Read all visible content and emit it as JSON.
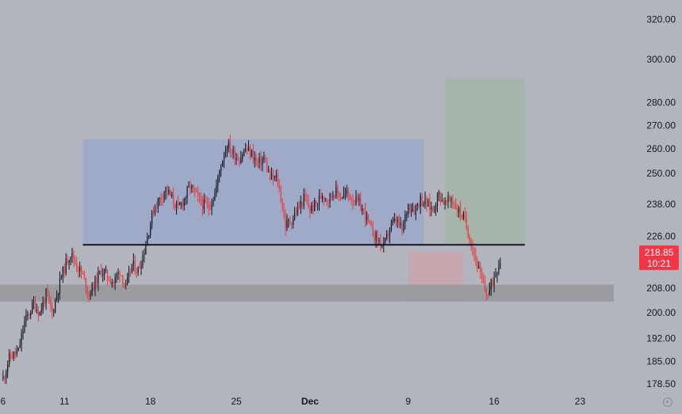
{
  "chart_data": {
    "type": "candlestick",
    "title": "",
    "xlabel": "",
    "ylabel": "",
    "scale": "log",
    "ylim": [
      176,
      330
    ],
    "grid": false,
    "legend": "none",
    "y_ticks": [
      320,
      300,
      280,
      270,
      260,
      250,
      238,
      226,
      208,
      200,
      192,
      185,
      178.5
    ],
    "y_tick_labels": [
      "320.00",
      "300.00",
      "280.00",
      "270.00",
      "260.00",
      "250.00",
      "238.00",
      "226.00",
      "208.00",
      "200.00",
      "192.00",
      "185.00",
      "178.50"
    ],
    "x_ticks": [
      {
        "label": "6",
        "pos": 0,
        "bold": false
      },
      {
        "label": "11",
        "pos": 20,
        "bold": false
      },
      {
        "label": "18",
        "pos": 48,
        "bold": false
      },
      {
        "label": "25",
        "pos": 76,
        "bold": false
      },
      {
        "label": "Dec",
        "pos": 100,
        "bold": true
      },
      {
        "label": "9",
        "pos": 132,
        "bold": false
      },
      {
        "label": "16",
        "pos": 160,
        "bold": false
      },
      {
        "label": "23",
        "pos": 188,
        "bold": false
      }
    ],
    "x_range": [
      -1,
      207
    ],
    "close_path": [
      [
        0,
        180
      ],
      [
        2,
        186
      ],
      [
        5,
        188
      ],
      [
        7,
        197
      ],
      [
        10,
        203
      ],
      [
        12,
        200
      ],
      [
        14,
        206
      ],
      [
        16,
        200
      ],
      [
        18,
        208
      ],
      [
        19,
        212
      ],
      [
        21,
        218
      ],
      [
        22,
        220
      ],
      [
        24,
        216
      ],
      [
        26,
        212
      ],
      [
        28,
        206
      ],
      [
        30,
        210
      ],
      [
        32,
        214
      ],
      [
        34,
        212
      ],
      [
        36,
        210
      ],
      [
        38,
        214
      ],
      [
        40,
        208
      ],
      [
        42,
        216
      ],
      [
        44,
        214
      ],
      [
        46,
        221
      ],
      [
        47,
        226
      ],
      [
        49,
        236
      ],
      [
        51,
        240
      ],
      [
        53,
        244
      ],
      [
        55,
        240
      ],
      [
        57,
        236
      ],
      [
        59,
        240
      ],
      [
        61,
        245
      ],
      [
        63,
        241
      ],
      [
        65,
        238
      ],
      [
        67,
        237
      ],
      [
        69,
        242
      ],
      [
        71,
        254
      ],
      [
        73,
        262
      ],
      [
        75,
        258
      ],
      [
        77,
        256
      ],
      [
        79,
        260
      ],
      [
        81,
        258
      ],
      [
        83,
        254
      ],
      [
        85,
        256
      ],
      [
        87,
        248
      ],
      [
        89,
        248
      ],
      [
        90,
        244
      ],
      [
        92,
        230
      ],
      [
        94,
        232
      ],
      [
        96,
        236
      ],
      [
        98,
        240
      ],
      [
        100,
        236
      ],
      [
        102,
        238
      ],
      [
        104,
        242
      ],
      [
        106,
        240
      ],
      [
        108,
        243
      ],
      [
        110,
        241
      ],
      [
        112,
        242
      ],
      [
        114,
        240
      ],
      [
        116,
        238
      ],
      [
        118,
        234
      ],
      [
        120,
        228
      ],
      [
        122,
        225
      ],
      [
        124,
        222
      ],
      [
        126,
        229
      ],
      [
        128,
        232
      ],
      [
        130,
        228
      ],
      [
        132,
        238
      ],
      [
        134,
        236
      ],
      [
        136,
        240
      ],
      [
        138,
        238
      ],
      [
        140,
        236
      ],
      [
        142,
        242
      ],
      [
        144,
        238
      ],
      [
        146,
        240
      ],
      [
        148,
        236
      ],
      [
        150,
        233
      ],
      [
        152,
        226
      ],
      [
        154,
        218
      ],
      [
        156,
        210
      ],
      [
        158,
        206
      ],
      [
        160,
        212
      ],
      [
        162,
        218
      ]
    ],
    "zones": [
      {
        "name": "range",
        "x0": 26,
        "x1": 137,
        "y0": 223,
        "y1": 264,
        "color": "#9fa9c8"
      },
      {
        "name": "target",
        "x0": 144,
        "x1": 170,
        "y0": 223,
        "y1": 291,
        "color": "#a6b4ab"
      },
      {
        "name": "stop",
        "x0": 132,
        "x1": 150,
        "y0": 203.6,
        "y1": 220.5,
        "color": "#c7a7ae"
      },
      {
        "name": "support",
        "x0": -1,
        "x1": 199,
        "y0": 203.6,
        "y1": 209.2,
        "color": "#9b9ca1"
      }
    ],
    "support_line": {
      "x0": 26,
      "x1": 170,
      "y": 223
    },
    "colors": {
      "up": "#131722",
      "down": "#e83b3b",
      "line": "#131722"
    },
    "last_price": {
      "value": "218.85",
      "countdown": "10:21",
      "y": 218.85,
      "color": "#f23645"
    }
  }
}
